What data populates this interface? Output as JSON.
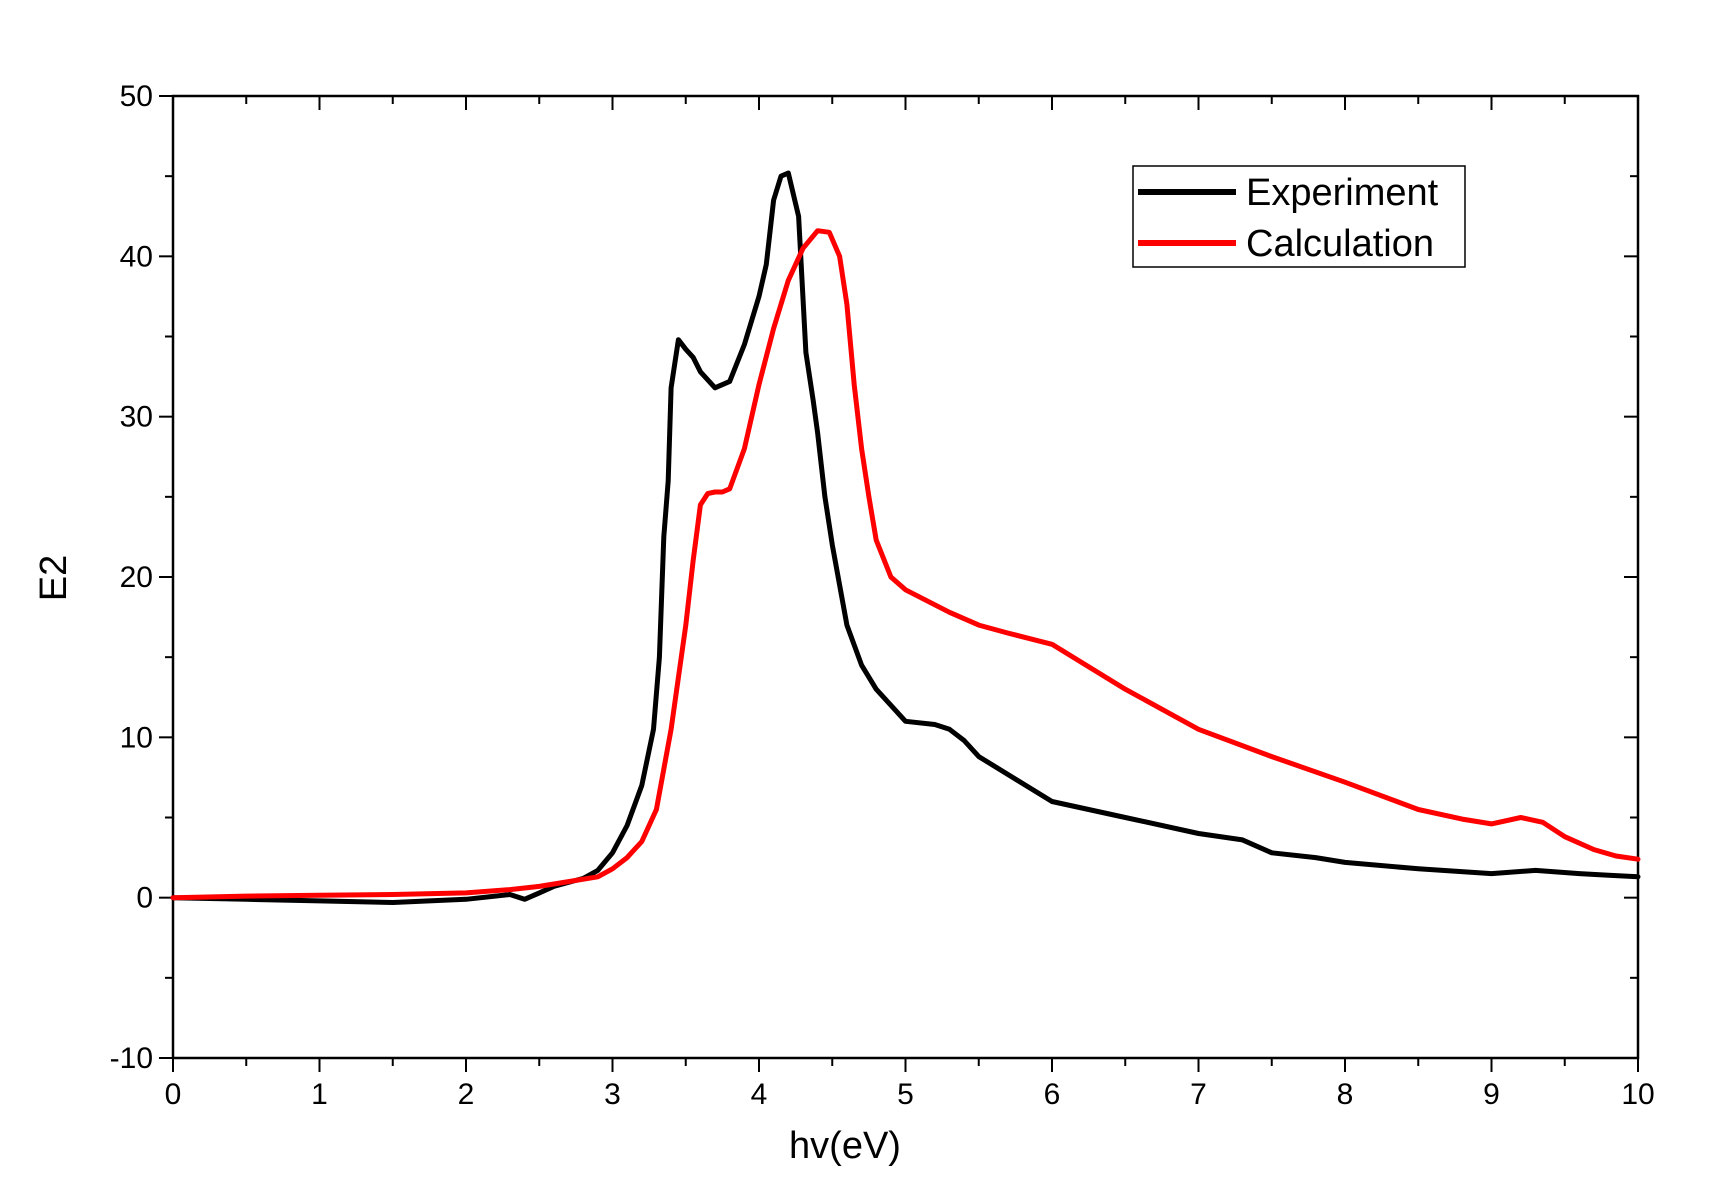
{
  "chart_data": {
    "type": "line",
    "xlabel": "hv(eV)",
    "ylabel": "E2",
    "xlim": [
      0,
      10
    ],
    "ylim": [
      -10,
      50
    ],
    "x_ticks": [
      "0",
      "1",
      "2",
      "3",
      "4",
      "5",
      "6",
      "7",
      "8",
      "9",
      "10"
    ],
    "y_ticks": [
      "-10",
      "0",
      "10",
      "20",
      "30",
      "40",
      "50"
    ],
    "grid": false,
    "legend": "top-right",
    "series": [
      {
        "name": "Experiment",
        "color": "#000000",
        "x": [
          0,
          0.5,
          1.0,
          1.5,
          2.0,
          2.3,
          2.4,
          2.5,
          2.6,
          2.8,
          2.9,
          3.0,
          3.1,
          3.2,
          3.28,
          3.32,
          3.35,
          3.38,
          3.4,
          3.45,
          3.5,
          3.55,
          3.6,
          3.7,
          3.8,
          3.9,
          4.0,
          4.05,
          4.1,
          4.15,
          4.2,
          4.27,
          4.32,
          4.37,
          4.4,
          4.45,
          4.5,
          4.6,
          4.7,
          4.8,
          5.0,
          5.2,
          5.3,
          5.4,
          5.5,
          6.0,
          6.5,
          7.0,
          7.3,
          7.5,
          7.8,
          8.0,
          8.5,
          9.0,
          9.3,
          9.6,
          9.8,
          10.0
        ],
        "y": [
          0,
          -0.1,
          -0.2,
          -0.3,
          -0.1,
          0.2,
          -0.1,
          0.3,
          0.7,
          1.2,
          1.7,
          2.8,
          4.5,
          7.0,
          10.5,
          15,
          22.5,
          26,
          31.8,
          34.8,
          34.2,
          33.7,
          32.8,
          31.8,
          32.2,
          34.5,
          37.5,
          39.5,
          43.5,
          45,
          45.2,
          42.5,
          34,
          31,
          29,
          25,
          22,
          17,
          14.5,
          13,
          11,
          10.8,
          10.5,
          9.8,
          8.8,
          6,
          5,
          4,
          3.6,
          2.8,
          2.5,
          2.2,
          1.8,
          1.5,
          1.7,
          1.5,
          1.4,
          1.3
        ]
      },
      {
        "name": "Calculation",
        "color": "#ff0000",
        "x": [
          0,
          0.5,
          1.0,
          1.5,
          2.0,
          2.3,
          2.5,
          2.7,
          2.9,
          3.0,
          3.1,
          3.2,
          3.3,
          3.4,
          3.5,
          3.55,
          3.6,
          3.65,
          3.7,
          3.75,
          3.8,
          3.9,
          4.0,
          4.1,
          4.2,
          4.3,
          4.4,
          4.48,
          4.55,
          4.6,
          4.65,
          4.7,
          4.75,
          4.8,
          4.9,
          5.0,
          5.3,
          5.5,
          5.7,
          6.0,
          6.5,
          7.0,
          7.5,
          8.0,
          8.5,
          8.8,
          9.0,
          9.2,
          9.35,
          9.5,
          9.7,
          9.85,
          10.0
        ],
        "y": [
          0,
          0.1,
          0.15,
          0.2,
          0.3,
          0.5,
          0.7,
          1.0,
          1.3,
          1.8,
          2.5,
          3.5,
          5.5,
          10.5,
          17,
          21,
          24.5,
          25.2,
          25.3,
          25.3,
          25.5,
          28,
          32,
          35.5,
          38.5,
          40.5,
          41.6,
          41.5,
          40,
          37,
          32,
          28,
          25,
          22.3,
          20,
          19.2,
          17.8,
          17,
          16.5,
          15.8,
          13,
          10.5,
          8.8,
          7.2,
          5.5,
          4.9,
          4.6,
          5.0,
          4.7,
          3.8,
          3.0,
          2.6,
          2.4
        ]
      }
    ]
  }
}
